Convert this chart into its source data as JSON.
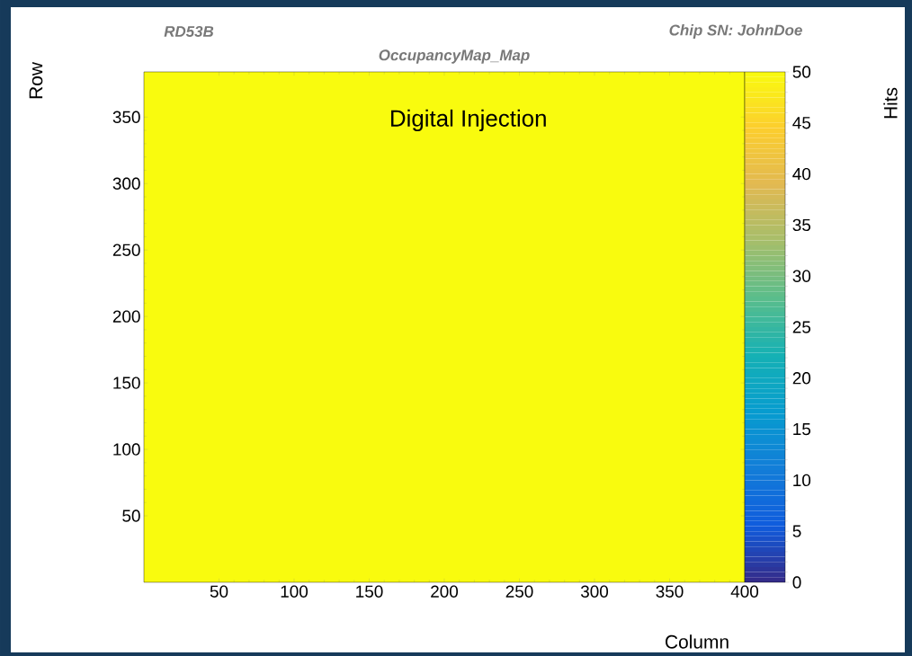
{
  "chart_data": {
    "type": "heatmap",
    "title": "OccupancyMap_Map",
    "xlabel": "Column",
    "ylabel": "Row",
    "clabel": "Hits",
    "annotations": [
      "RD53B",
      "Chip SN: JohnDoe",
      "Digital Injection"
    ],
    "cells": [
      [
        50
      ]
    ],
    "xlim": [
      0,
      400
    ],
    "ylim": [
      0,
      384
    ],
    "xticks": [
      50,
      100,
      150,
      200,
      250,
      300,
      350,
      400
    ],
    "yticks": [
      50,
      100,
      150,
      200,
      250,
      300,
      350
    ],
    "clim": [
      0,
      50
    ],
    "cticks": [
      0,
      5,
      10,
      15,
      20,
      25,
      30,
      35,
      40,
      45,
      50
    ]
  }
}
